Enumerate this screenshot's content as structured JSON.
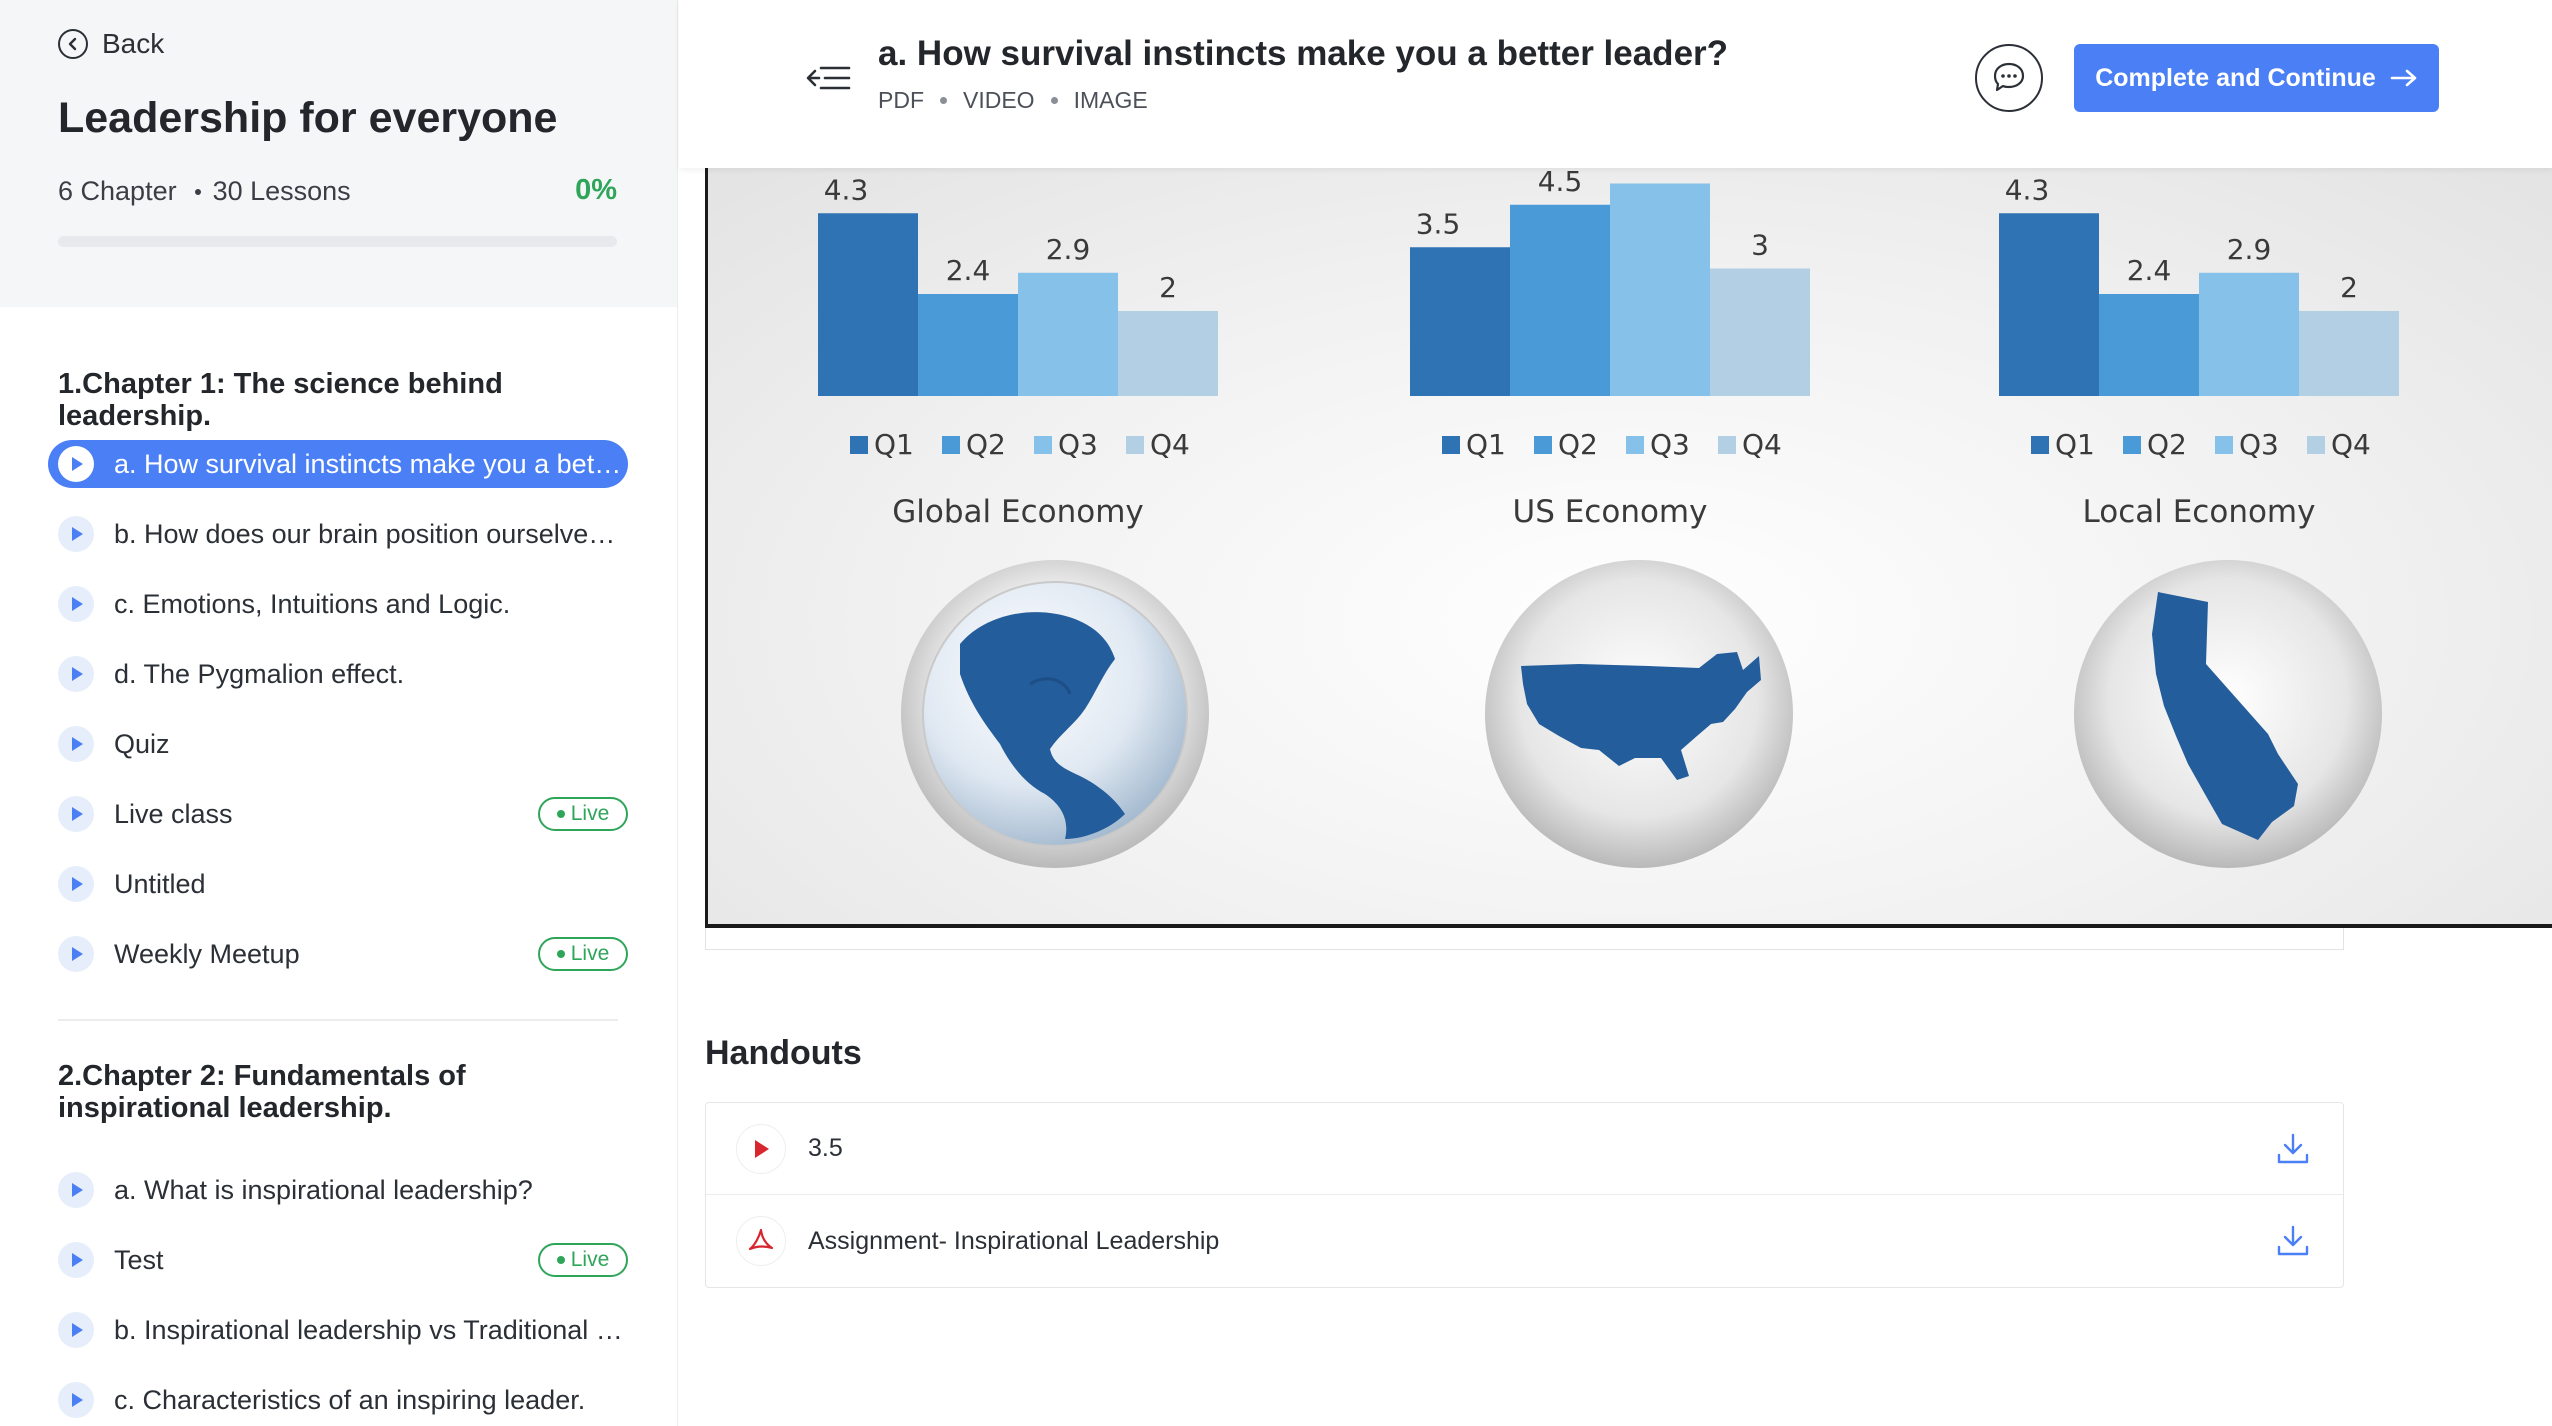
{
  "sidebar": {
    "back_label": "Back",
    "course_title": "Leadership for everyone",
    "chapters_count": "6 Chapter",
    "lessons_count": "30 Lessons",
    "progress_label": "0%",
    "progress_value": 0,
    "chapters": [
      {
        "title": "1.Chapter 1: The science behind leadership.",
        "lessons": [
          {
            "label": "a. How survival instincts make you a better leader?",
            "active": true,
            "live": false
          },
          {
            "label": "b. How does our brain position ourselves in a group?",
            "active": false,
            "live": false
          },
          {
            "label": "c. Emotions, Intuitions and Logic.",
            "active": false,
            "live": false
          },
          {
            "label": "d. The Pygmalion effect.",
            "active": false,
            "live": false
          },
          {
            "label": "Quiz",
            "active": false,
            "live": false
          },
          {
            "label": "Live class",
            "active": false,
            "live": true
          },
          {
            "label": "Untitled",
            "active": false,
            "live": false
          },
          {
            "label": "Weekly Meetup",
            "active": false,
            "live": true
          }
        ]
      },
      {
        "title": "2.Chapter 2: Fundamentals of inspirational leadership.",
        "lessons": [
          {
            "label": "a. What is inspirational leadership?",
            "active": false,
            "live": false
          },
          {
            "label": "Test",
            "active": false,
            "live": true
          },
          {
            "label": "b. Inspirational leadership vs Traditional leadership",
            "active": false,
            "live": false
          },
          {
            "label": "c. Characteristics of an inspiring leader.",
            "active": false,
            "live": false
          }
        ]
      }
    ],
    "live_badge_label": "Live"
  },
  "header": {
    "lesson_title": "a. How survival instincts make you a better leader?",
    "content_types": [
      "PDF",
      "VIDEO",
      "IMAGE"
    ],
    "complete_button_label": "Complete and Continue"
  },
  "colors": {
    "accent": "#4a7ff5",
    "live_green": "#2fa55a",
    "q1": "#2f73b5",
    "q2": "#4a9ad8",
    "q3": "#85c1e9",
    "q4": "#b3cfe4",
    "map_blue": "#245d9b"
  },
  "chart_data": [
    {
      "type": "bar",
      "title": "Global Economy",
      "categories": [
        "Q1",
        "Q2",
        "Q3",
        "Q4"
      ],
      "values": [
        4.3,
        2.4,
        2.9,
        2
      ],
      "value_labels": [
        "4.3",
        "2.4",
        "2.9",
        "2"
      ],
      "legend": "bottom",
      "icon": "globe-americas"
    },
    {
      "type": "bar",
      "title": "US Economy",
      "categories": [
        "Q1",
        "Q2",
        "Q3",
        "Q4"
      ],
      "values": [
        3.5,
        4.5,
        5.0,
        3
      ],
      "value_labels": [
        "3.5",
        "4.5",
        "",
        "3"
      ],
      "legend": "bottom",
      "icon": "usa-map"
    },
    {
      "type": "bar",
      "title": "Local Economy",
      "categories": [
        "Q1",
        "Q2",
        "Q3",
        "Q4"
      ],
      "values": [
        4.3,
        2.4,
        2.9,
        2
      ],
      "value_labels": [
        "4.3",
        "2.4",
        "2.9",
        "2"
      ],
      "legend": "bottom",
      "icon": "california-map"
    }
  ],
  "handouts": {
    "title": "Handouts",
    "items": [
      {
        "name": "3.5",
        "icon": "video-play-icon"
      },
      {
        "name": "Assignment- Inspirational Leadership",
        "icon": "pdf-icon"
      }
    ]
  }
}
